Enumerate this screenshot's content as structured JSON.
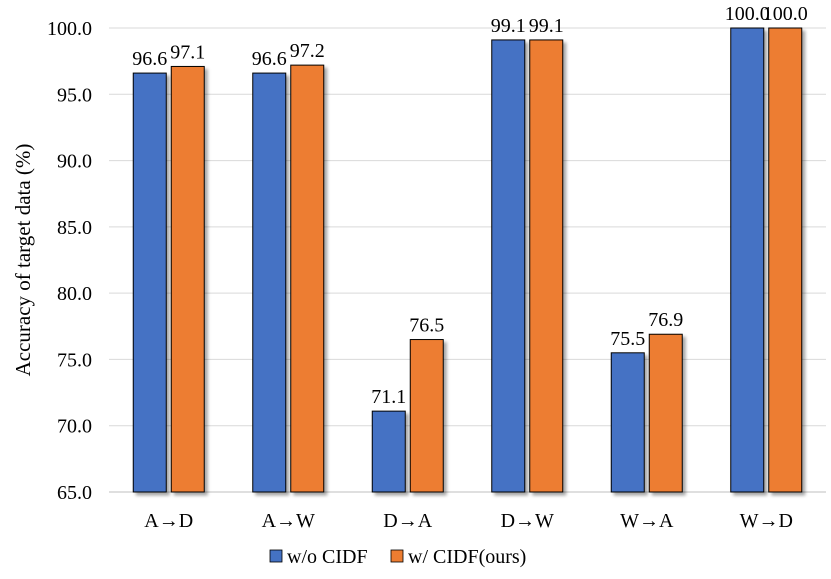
{
  "chart_data": {
    "type": "bar",
    "title": "",
    "xlabel": "",
    "ylabel": "Accuracy of target data (%)",
    "ylim": [
      65,
      100
    ],
    "ytick_step": 5,
    "ytick_labels": [
      "65.0",
      "70.0",
      "75.0",
      "80.0",
      "85.0",
      "90.0",
      "95.0",
      "100.0"
    ],
    "grid": true,
    "legend_position": "bottom-center",
    "categories": [
      "A→D",
      "A→W",
      "D→A",
      "D→W",
      "W→A",
      "W→D"
    ],
    "series": [
      {
        "name": "w/o CIDF",
        "color": "#4472c4",
        "values": [
          96.6,
          96.6,
          71.1,
          99.1,
          75.5,
          100.0
        ],
        "labels": [
          "96.6",
          "96.6",
          "71.1",
          "99.1",
          "75.5",
          "100.0"
        ]
      },
      {
        "name": "w/ CIDF(ours)",
        "color": "#ed7d31",
        "values": [
          97.1,
          97.2,
          76.5,
          99.1,
          76.9,
          100.0
        ],
        "labels": [
          "97.1",
          "97.2",
          "76.5",
          "99.1",
          "76.9",
          "100.0"
        ]
      }
    ]
  }
}
